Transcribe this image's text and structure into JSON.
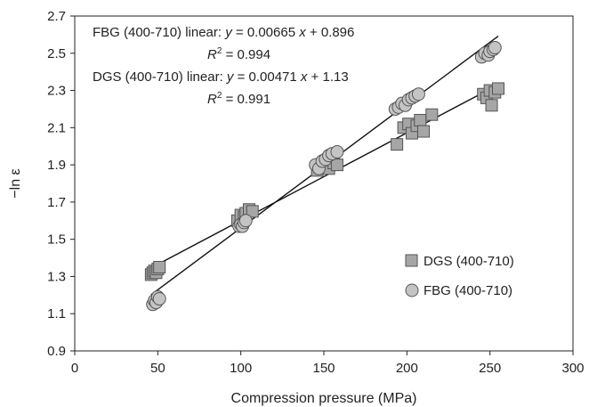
{
  "chart_data": {
    "type": "scatter",
    "xlabel": "Compression pressure (MPa)",
    "ylabel": "−ln ε",
    "xlim": [
      0,
      300
    ],
    "ylim": [
      0.9,
      2.7
    ],
    "x_ticks": [
      "0",
      "50",
      "100",
      "150",
      "200",
      "250",
      "300"
    ],
    "y_ticks": [
      "0.9",
      "1.1",
      "1.3",
      "1.5",
      "1.7",
      "1.9",
      "2.1",
      "2.3",
      "2.5",
      "2.7"
    ],
    "grid": false,
    "legend_position": "bottom-right",
    "series": [
      {
        "name": "DGS (400-710)",
        "marker": "square",
        "color": "#a6a6a6",
        "fit": {
          "slope": 0.00471,
          "intercept": 1.13,
          "x_range": [
            46,
            255
          ]
        },
        "points": [
          [
            46,
            1.31
          ],
          [
            47,
            1.32
          ],
          [
            48,
            1.33
          ],
          [
            49,
            1.32
          ],
          [
            50,
            1.34
          ],
          [
            51,
            1.35
          ],
          [
            98,
            1.6
          ],
          [
            100,
            1.63
          ],
          [
            102,
            1.62
          ],
          [
            103,
            1.64
          ],
          [
            105,
            1.66
          ],
          [
            107,
            1.65
          ],
          [
            146,
            1.87
          ],
          [
            148,
            1.89
          ],
          [
            150,
            1.9
          ],
          [
            153,
            1.88
          ],
          [
            156,
            1.91
          ],
          [
            158,
            1.9
          ],
          [
            194,
            2.01
          ],
          [
            198,
            2.1
          ],
          [
            201,
            2.12
          ],
          [
            203,
            2.07
          ],
          [
            206,
            2.11
          ],
          [
            208,
            2.14
          ],
          [
            210,
            2.08
          ],
          [
            215,
            2.17
          ],
          [
            246,
            2.28
          ],
          [
            248,
            2.26
          ],
          [
            250,
            2.3
          ],
          [
            251,
            2.22
          ],
          [
            253,
            2.29
          ],
          [
            255,
            2.31
          ]
        ]
      },
      {
        "name": "FBG (400-710)",
        "marker": "circle",
        "color": "#c4c4c4",
        "fit": {
          "slope": 0.00665,
          "intercept": 0.896,
          "x_range": [
            46,
            255
          ]
        },
        "points": [
          [
            47,
            1.15
          ],
          [
            48,
            1.17
          ],
          [
            49,
            1.16
          ],
          [
            50,
            1.19
          ],
          [
            51,
            1.18
          ],
          [
            99,
            1.57
          ],
          [
            100,
            1.58
          ],
          [
            101,
            1.57
          ],
          [
            102,
            1.59
          ],
          [
            103,
            1.6
          ],
          [
            145,
            1.9
          ],
          [
            147,
            1.88
          ],
          [
            149,
            1.92
          ],
          [
            151,
            1.93
          ],
          [
            153,
            1.95
          ],
          [
            155,
            1.96
          ],
          [
            158,
            1.97
          ],
          [
            193,
            2.2
          ],
          [
            195,
            2.21
          ],
          [
            197,
            2.23
          ],
          [
            199,
            2.22
          ],
          [
            201,
            2.25
          ],
          [
            203,
            2.26
          ],
          [
            205,
            2.27
          ],
          [
            207,
            2.28
          ],
          [
            245,
            2.48
          ],
          [
            247,
            2.5
          ],
          [
            249,
            2.49
          ],
          [
            250,
            2.51
          ],
          [
            252,
            2.52
          ],
          [
            253,
            2.53
          ]
        ]
      }
    ],
    "annotations": {
      "fbg_eq": {
        "prefix": "FBG (400-710) linear: ",
        "var_y": "y",
        "mid": " = 0.00665 ",
        "var_x": "x",
        "suffix": " + 0.896"
      },
      "fbg_r2": {
        "r": "R",
        "sup": "2",
        "val": " = 0.994"
      },
      "dgs_eq": {
        "prefix": "DGS (400-710) linear: ",
        "var_y": "y",
        "mid": " = 0.00471 ",
        "var_x": "x",
        "suffix": " + 1.13"
      },
      "dgs_r2": {
        "r": "R",
        "sup": "2",
        "val": " = 0.991"
      }
    },
    "legend": [
      "DGS (400-710)",
      "FBG (400-710)"
    ]
  }
}
